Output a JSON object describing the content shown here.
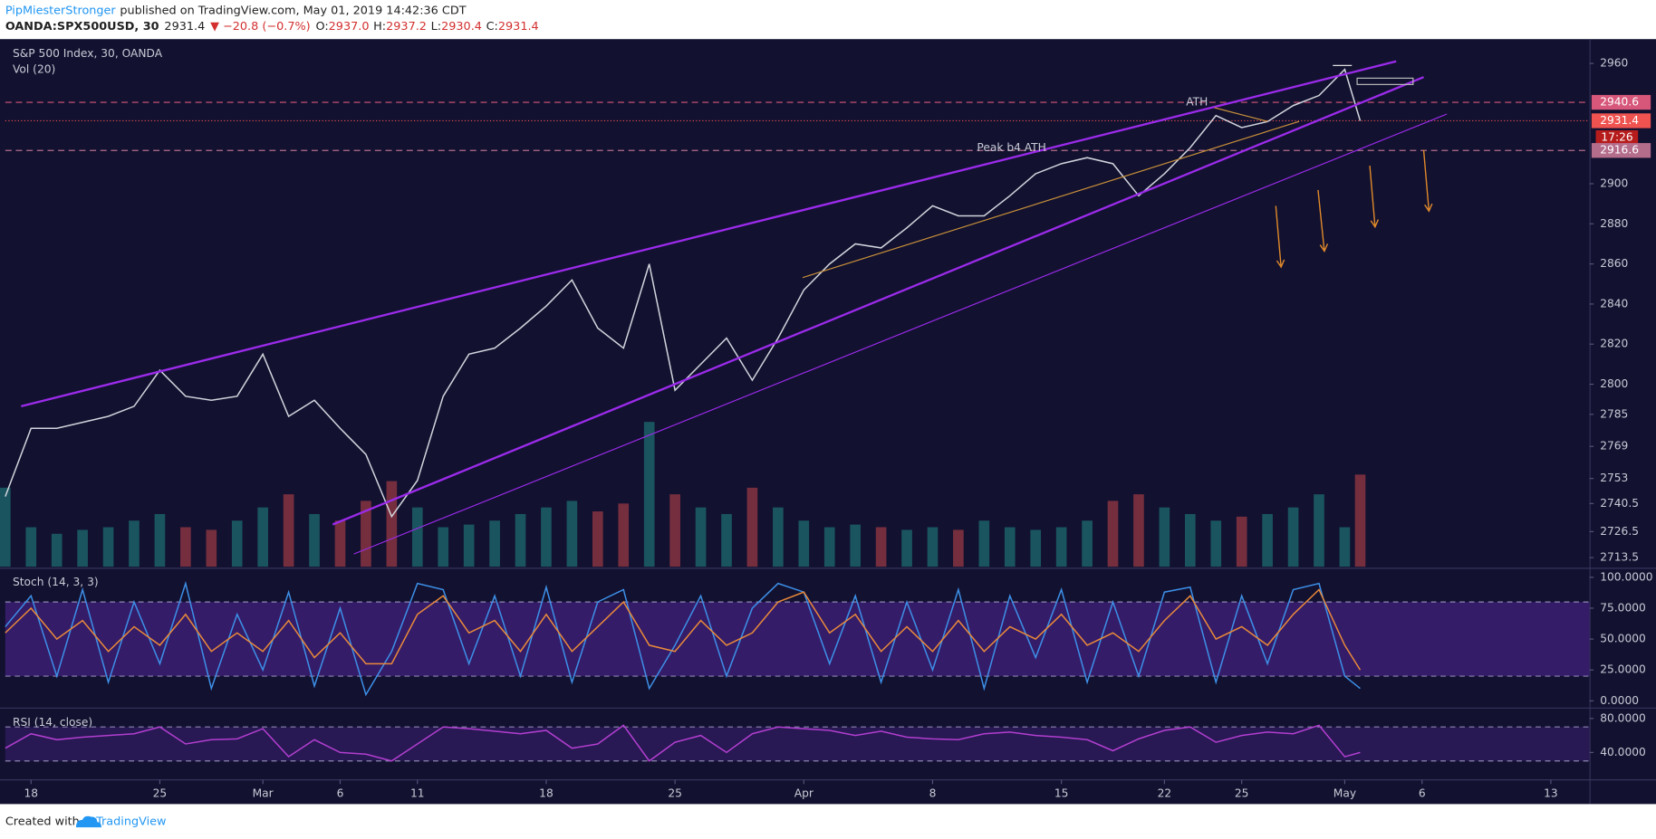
{
  "header": {
    "author": "PipMiesterStronger",
    "published": "published on TradingView.com, May 01, 2019 14:42:36 CDT",
    "symbol": "OANDA:SPX500USD, 30",
    "last": "2931.4",
    "change": "▼ −20.8 (−0.7%)",
    "ohlc": [
      {
        "label": "O:",
        "value": "2937.0"
      },
      {
        "label": "H:",
        "value": "2937.2"
      },
      {
        "label": "L:",
        "value": "2930.4"
      },
      {
        "label": "C:",
        "value": "2931.4"
      }
    ]
  },
  "chart_data": [
    {
      "type": "line",
      "title": "S&P 500 Index, 30, OANDA",
      "subtitle": "Vol (20)",
      "annotations": [
        "ATH",
        "Peak b4 ATH"
      ],
      "x": [
        -1,
        0,
        1,
        2,
        3,
        4,
        5,
        6,
        7,
        8,
        9,
        10,
        11,
        12,
        13,
        14,
        15,
        16,
        17,
        18,
        19,
        20,
        21,
        22,
        23,
        24,
        25,
        26,
        27,
        28,
        29,
        30,
        31,
        32,
        33,
        34,
        35,
        36,
        37,
        38,
        39,
        40,
        41,
        42,
        43,
        44,
        45,
        46,
        47,
        48,
        49,
        50,
        51,
        51.6
      ],
      "xlim": [
        -1,
        60.5
      ],
      "xticks": [
        {
          "value": 0,
          "label": "18"
        },
        {
          "value": 5,
          "label": "25"
        },
        {
          "value": 9,
          "label": "Mar"
        },
        {
          "value": 12,
          "label": "6"
        },
        {
          "value": 15,
          "label": "11"
        },
        {
          "value": 20,
          "label": "18"
        },
        {
          "value": 25,
          "label": "25"
        },
        {
          "value": 30,
          "label": "Apr"
        },
        {
          "value": 35,
          "label": "8"
        },
        {
          "value": 40,
          "label": "15"
        },
        {
          "value": 44,
          "label": "22"
        },
        {
          "value": 47,
          "label": "25"
        },
        {
          "value": 51,
          "label": "May"
        },
        {
          "value": 54,
          "label": "6"
        },
        {
          "value": 59,
          "label": "13"
        }
      ],
      "ylim": [
        2709,
        2971.6
      ],
      "yticks": [
        2960,
        2900,
        2880,
        2860,
        2840,
        2820,
        2800,
        2785,
        2769,
        2753,
        2740.5,
        2726.5,
        2713.5
      ],
      "y2lim": [
        0,
        400
      ],
      "up_color": "#26a69a",
      "down_color": "#ef5350",
      "series": [
        {
          "name": "Close",
          "color": "#d1d4dc",
          "values": [
            2744,
            2778,
            2778,
            2781,
            2784,
            2789,
            2807,
            2794,
            2792,
            2794,
            2815,
            2784,
            2792,
            2778,
            2765,
            2734,
            2752,
            2794,
            2815,
            2818,
            2828,
            2839,
            2852,
            2828,
            2818,
            2860,
            2797,
            2810,
            2823,
            2802,
            2823,
            2847,
            2860,
            2870,
            2868,
            2878,
            2889,
            2884,
            2884,
            2894,
            2905,
            2910,
            2913,
            2910,
            2894,
            2905,
            2918,
            2934,
            2928,
            2931,
            2939,
            2944,
            2957,
            2931.4
          ]
        },
        {
          "name": "Vol",
          "axis": "y2",
          "values": [
            60,
            30,
            25,
            28,
            30,
            35,
            40,
            30,
            28,
            35,
            45,
            55,
            40,
            35,
            50,
            65,
            45,
            30,
            32,
            35,
            40,
            45,
            50,
            42,
            48,
            110,
            55,
            45,
            40,
            60,
            45,
            35,
            30,
            32,
            30,
            28,
            30,
            28,
            35,
            30,
            28,
            30,
            35,
            50,
            55,
            45,
            40,
            35,
            38,
            40,
            45,
            55,
            30,
            70
          ]
        }
      ],
      "price_tags": [
        {
          "value": 2940.6,
          "color": "#d6577a",
          "line": "dashed"
        },
        {
          "value": 2931.4,
          "color": "#ef5350",
          "line": "dotted",
          "countdown": "17:26"
        },
        {
          "value": 2916.6,
          "color": "#b56d8c",
          "line": "dashed"
        }
      ]
    },
    {
      "type": "line",
      "title": "Stoch (14, 3, 3)",
      "ylim": [
        -5,
        106
      ],
      "yticks": [
        {
          "value": 100,
          "label": "100.0000"
        },
        {
          "value": 75,
          "label": "75.0000"
        },
        {
          "value": 50,
          "label": "50.0000"
        },
        {
          "value": 25,
          "label": "25.0000"
        },
        {
          "value": 0,
          "label": "0.0000"
        }
      ],
      "bands": [
        20,
        80
      ],
      "band_color": "#3d1f78",
      "series": [
        {
          "name": "%K",
          "color": "#3d8fe6",
          "values": [
            60,
            85,
            20,
            90,
            15,
            80,
            30,
            95,
            10,
            70,
            25,
            88,
            12,
            75,
            5,
            40,
            95,
            90,
            30,
            85,
            20,
            92,
            15,
            80,
            90,
            10,
            45,
            85,
            20,
            75,
            95,
            88,
            30,
            85,
            15,
            80,
            25,
            90,
            10,
            85,
            35,
            90,
            15,
            80,
            20,
            88,
            92,
            15,
            85,
            30,
            90,
            95,
            20,
            10
          ]
        },
        {
          "name": "%D",
          "color": "#e8893a",
          "values": [
            55,
            75,
            50,
            65,
            40,
            60,
            45,
            70,
            40,
            55,
            40,
            65,
            35,
            55,
            30,
            30,
            70,
            85,
            55,
            65,
            40,
            70,
            40,
            60,
            80,
            45,
            40,
            65,
            45,
            55,
            80,
            88,
            55,
            70,
            40,
            60,
            40,
            65,
            40,
            60,
            50,
            70,
            45,
            55,
            40,
            65,
            85,
            50,
            60,
            45,
            70,
            90,
            45,
            25
          ]
        }
      ]
    },
    {
      "type": "line",
      "title": "RSI (14, close)",
      "ylim": [
        9,
        91
      ],
      "yticks": [
        {
          "value": 80,
          "label": "80.0000"
        },
        {
          "value": 40,
          "label": "40.0000"
        }
      ],
      "bands": [
        30,
        70
      ],
      "band_color": "#2e1a5c",
      "series": [
        {
          "name": "RSI",
          "color": "#b23fd0",
          "values": [
            45,
            62,
            55,
            58,
            60,
            62,
            70,
            50,
            55,
            56,
            68,
            35,
            55,
            40,
            38,
            30,
            50,
            70,
            68,
            65,
            62,
            66,
            45,
            50,
            72,
            30,
            52,
            60,
            40,
            62,
            70,
            68,
            66,
            60,
            65,
            58,
            56,
            55,
            62,
            64,
            60,
            58,
            55,
            42,
            56,
            66,
            70,
            52,
            60,
            64,
            62,
            72,
            35,
            40
          ]
        }
      ]
    }
  ],
  "footer": {
    "created": "Created with",
    "brand": "TradingView"
  }
}
